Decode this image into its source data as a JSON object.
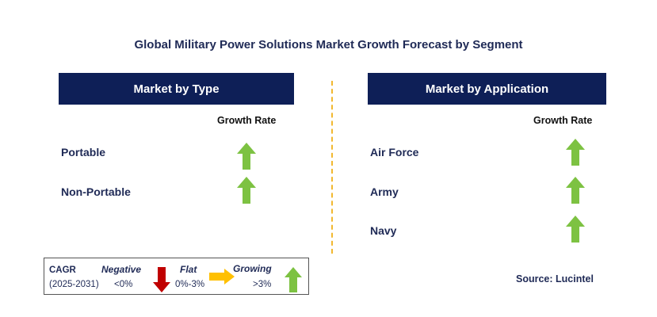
{
  "title": "Global Military Power Solutions Market Growth Forecast by Segment",
  "left_panel": {
    "header": "Market by Type",
    "growth_label": "Growth Rate",
    "rows": [
      {
        "label": "Portable",
        "trend": "growing"
      },
      {
        "label": "Non-Portable",
        "trend": "growing"
      }
    ]
  },
  "right_panel": {
    "header": "Market by Application",
    "growth_label": "Growth Rate",
    "rows": [
      {
        "label": "Air Force",
        "trend": "growing"
      },
      {
        "label": "Army",
        "trend": "growing"
      },
      {
        "label": "Navy",
        "trend": "growing"
      }
    ]
  },
  "legend": {
    "cagr_label": "CAGR",
    "period": "(2025-2031)",
    "negative_label": "Negative",
    "negative_range": "<0%",
    "flat_label": "Flat",
    "flat_range": "0%-3%",
    "growing_label": "Growing",
    "growing_range": ">3%"
  },
  "source": "Source: Lucintel",
  "colors": {
    "header_bg": "#0e1f57",
    "growing_arrow": "#7dc242",
    "negative_arrow": "#c00000",
    "flat_arrow": "#ffc000",
    "divider": "#f2b830"
  }
}
